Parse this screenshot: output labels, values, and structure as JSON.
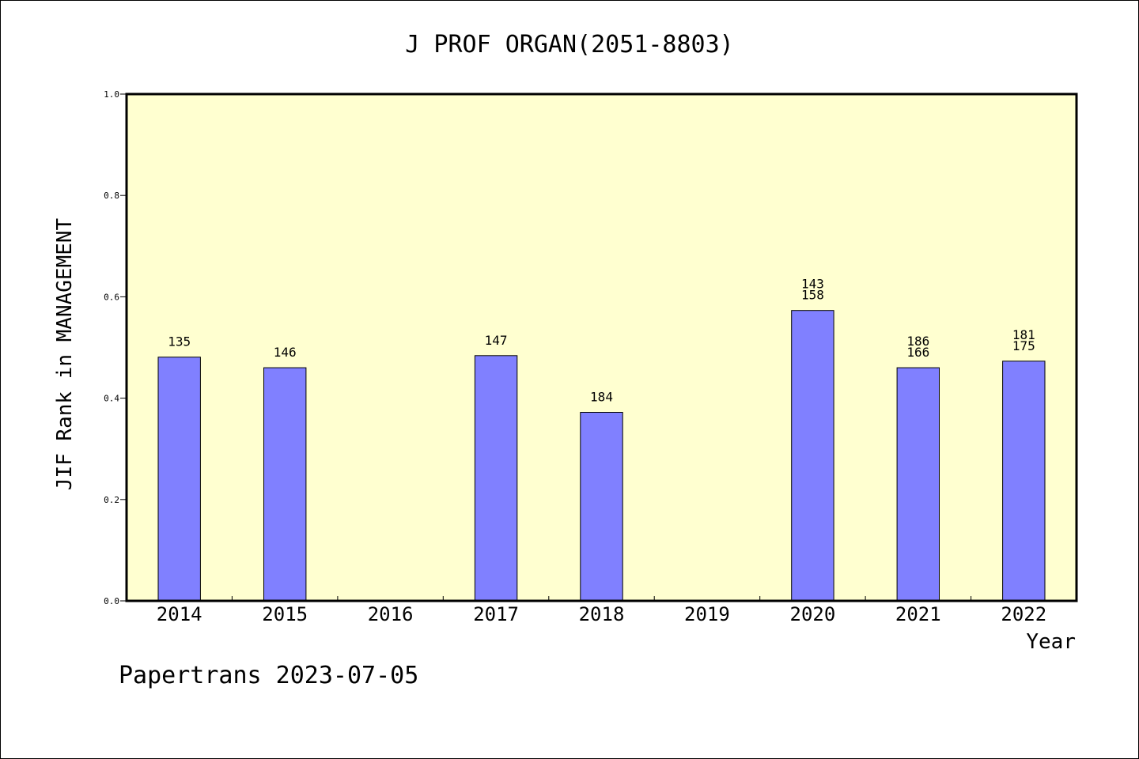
{
  "chart_data": {
    "type": "bar",
    "title": "J PROF ORGAN(2051-8803)",
    "xlabel": "Year",
    "ylabel": "JIF Rank in MANAGEMENT",
    "categories": [
      "2014",
      "2015",
      "2016",
      "2017",
      "2018",
      "2019",
      "2020",
      "2021",
      "2022"
    ],
    "values": [
      0.481,
      0.46,
      null,
      0.484,
      0.372,
      null,
      0.573,
      0.46,
      0.473
    ],
    "bar_labels": [
      [
        "135"
      ],
      [
        "146"
      ],
      [],
      [
        "147"
      ],
      [
        "184"
      ],
      [],
      [
        "143",
        "158"
      ],
      [
        "186",
        "166"
      ],
      [
        "181",
        "175"
      ]
    ],
    "ylim": [
      0,
      1.0
    ],
    "yticks": [
      0.0,
      0.2,
      0.4,
      0.6,
      0.8,
      1.0
    ],
    "ytick_labels": [
      "0.0",
      "0.2",
      "0.4",
      "0.6",
      "0.8",
      "1.0"
    ],
    "grid": false,
    "colors": {
      "plot_background": "#ffffd0",
      "bar_fill": "#8080ff",
      "bar_stroke": "#000000"
    }
  },
  "footer": {
    "text": "Papertrans 2023-07-05"
  }
}
